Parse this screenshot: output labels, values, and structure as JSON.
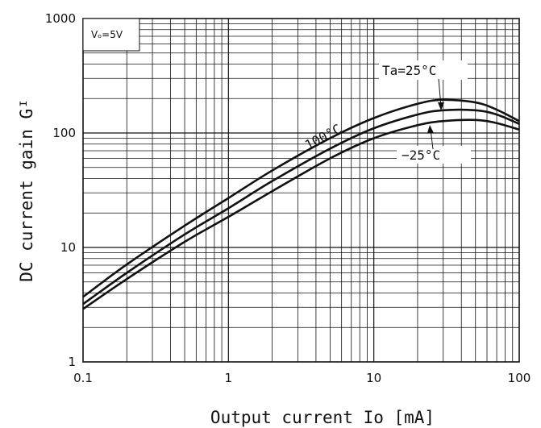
{
  "chart_data": {
    "type": "line",
    "xlabel": "Output current Io [mA]",
    "ylabel": "DC current gain Gᴵ",
    "x_scale": "log",
    "y_scale": "log",
    "xlim": [
      0.1,
      100
    ],
    "ylim": [
      1,
      1000
    ],
    "x_ticks": [
      {
        "value": 0.1,
        "label": "0.1"
      },
      {
        "value": 1,
        "label": "1"
      },
      {
        "value": 10,
        "label": "10"
      },
      {
        "value": 100,
        "label": "100"
      }
    ],
    "y_ticks": [
      {
        "value": 1,
        "label": "1"
      },
      {
        "value": 10,
        "label": "10"
      },
      {
        "value": 100,
        "label": "100"
      },
      {
        "value": 1000,
        "label": "1000"
      }
    ],
    "grid": true,
    "series": [
      {
        "name": "100°C",
        "points": [
          [
            0.1,
            3.7
          ],
          [
            0.2,
            7.1
          ],
          [
            0.5,
            15.5
          ],
          [
            1,
            27
          ],
          [
            2,
            47
          ],
          [
            5,
            90
          ],
          [
            10,
            135
          ],
          [
            20,
            180
          ],
          [
            30,
            195
          ],
          [
            50,
            185
          ],
          [
            70,
            160
          ],
          [
            100,
            127
          ]
        ]
      },
      {
        "name": "Ta=25°C",
        "points": [
          [
            0.1,
            3.2
          ],
          [
            0.2,
            6.0
          ],
          [
            0.5,
            13
          ],
          [
            1,
            22
          ],
          [
            2,
            38
          ],
          [
            5,
            73
          ],
          [
            10,
            110
          ],
          [
            20,
            145
          ],
          [
            30,
            158
          ],
          [
            50,
            158
          ],
          [
            70,
            145
          ],
          [
            100,
            120
          ]
        ]
      },
      {
        "name": "−25°C",
        "points": [
          [
            0.1,
            2.9
          ],
          [
            0.2,
            5.3
          ],
          [
            0.5,
            11.2
          ],
          [
            1,
            18.5
          ],
          [
            2,
            31
          ],
          [
            5,
            60
          ],
          [
            10,
            90
          ],
          [
            20,
            117
          ],
          [
            30,
            127
          ],
          [
            50,
            130
          ],
          [
            70,
            122
          ],
          [
            100,
            107
          ]
        ]
      }
    ],
    "annotations": {
      "condition": "Vₒ=5V",
      "ta_label": "Ta=25°C",
      "hot_label": "100°C",
      "cold_label": "−25°C"
    }
  }
}
